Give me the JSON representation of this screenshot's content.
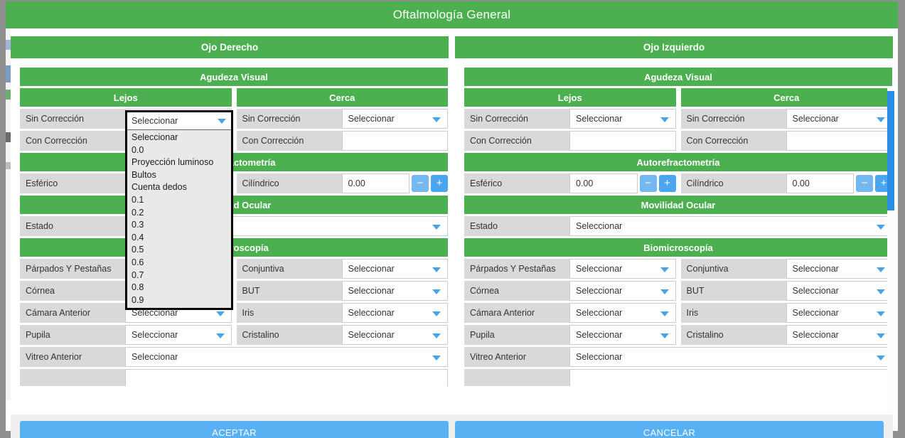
{
  "modal": {
    "title": "Oftalmología General",
    "accept_label": "ACEPTAR",
    "cancel_label": "CANCELAR"
  },
  "colors": {
    "header_green": "#4caf50",
    "button_blue": "#57b1f2",
    "scrollbar_blue": "#2b8ce6",
    "chevron_blue": "#4aa3e8",
    "label_gray": "#d9d9d9"
  },
  "controls": {
    "minus": "−",
    "plus": "+"
  },
  "panels": [
    {
      "header": "Ojo Derecho"
    },
    {
      "header": "Ojo Izquierdo"
    }
  ],
  "sections": [
    {
      "type": "header",
      "text": "Agudeza Visual"
    },
    {
      "type": "subheaders",
      "items": [
        "Lejos",
        "Cerca"
      ]
    },
    {
      "type": "row2",
      "cells": [
        {
          "label": "Sin Corrección",
          "field": "select",
          "value": "Seleccionar"
        },
        {
          "label": "Sin Corrección",
          "field": "select",
          "value": "Seleccionar"
        }
      ]
    },
    {
      "type": "row2",
      "cells": [
        {
          "label": "Con Corrección",
          "field": "input",
          "value": ""
        },
        {
          "label": "Con Corrección",
          "field": "input",
          "value": ""
        }
      ]
    },
    {
      "type": "header",
      "text": "Autorefractometría"
    },
    {
      "type": "row2",
      "cells": [
        {
          "label": "Esférico",
          "field": "spinner",
          "value": "0.00"
        },
        {
          "label": "Cilíndrico",
          "field": "spinner",
          "value": "0.00"
        }
      ]
    },
    {
      "type": "header",
      "text": "Movilidad Ocular"
    },
    {
      "type": "row1",
      "cells": [
        {
          "label": "Estado",
          "field": "select",
          "value": "Seleccionar"
        }
      ]
    },
    {
      "type": "header",
      "text": "Biomicroscopía"
    },
    {
      "type": "row2",
      "cells": [
        {
          "label": "Párpados Y Pestañas",
          "field": "select",
          "value": "Seleccionar"
        },
        {
          "label": "Conjuntiva",
          "field": "select",
          "value": "Seleccionar"
        }
      ]
    },
    {
      "type": "row2",
      "cells": [
        {
          "label": "Córnea",
          "field": "select",
          "value": "Seleccionar"
        },
        {
          "label": "BUT",
          "field": "select",
          "value": "Seleccionar"
        }
      ]
    },
    {
      "type": "row2",
      "cells": [
        {
          "label": "Cámara Anterior",
          "field": "select",
          "value": "Seleccionar"
        },
        {
          "label": "Iris",
          "field": "select",
          "value": "Seleccionar"
        }
      ]
    },
    {
      "type": "row2",
      "cells": [
        {
          "label": "Pupila",
          "field": "select",
          "value": "Seleccionar"
        },
        {
          "label": "Cristalino",
          "field": "select",
          "value": "Seleccionar"
        }
      ]
    },
    {
      "type": "row1",
      "cells": [
        {
          "label": "Vitreo Anterior",
          "field": "select",
          "value": "Seleccionar"
        }
      ]
    },
    {
      "type": "row1",
      "cells": [
        {
          "label": "",
          "field": "textarea",
          "value": ""
        }
      ]
    }
  ],
  "open_dropdown": {
    "owner": "sin-correccion-lejos-ojo-derecho",
    "selected": "Seleccionar",
    "options": [
      "Seleccionar",
      "0.0",
      "Proyección luminoso",
      "Bultos",
      "Cuenta dedos",
      "0.1",
      "0.2",
      "0.3",
      "0.4",
      "0.5",
      "0.6",
      "0.7",
      "0.8",
      "0.9"
    ]
  }
}
